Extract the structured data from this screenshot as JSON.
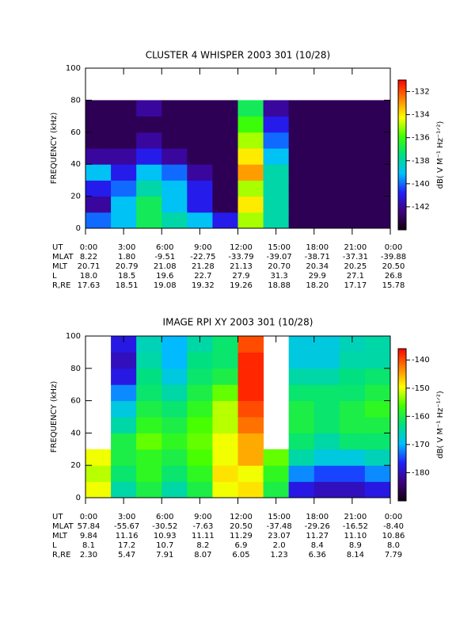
{
  "chart_data": [
    {
      "type": "heatmap",
      "title": "CLUSTER 4 WHISPER 2003 301 (10/28)",
      "ylabel": "FREQUENCY (kHz)",
      "xlim": [
        0,
        24
      ],
      "ylim": [
        0,
        100
      ],
      "yticks": [
        0,
        20,
        40,
        60,
        80,
        100
      ],
      "xticks": [
        {
          "value": 0,
          "label": "0:00"
        },
        {
          "value": 3,
          "label": "3:00"
        },
        {
          "value": 6,
          "label": "6:00"
        },
        {
          "value": 9,
          "label": "9:00"
        },
        {
          "value": 12,
          "label": "12:00"
        },
        {
          "value": 15,
          "label": "15:00"
        },
        {
          "value": 18,
          "label": "18:00"
        },
        {
          "value": 21,
          "label": "21:00"
        },
        {
          "value": 24,
          "label": "0:00"
        }
      ],
      "x_bins": [
        0,
        2,
        4,
        6,
        8,
        10,
        12,
        14,
        16,
        18,
        20,
        22,
        24
      ],
      "y_bins": [
        0,
        10,
        20,
        30,
        40,
        50,
        60,
        70,
        80
      ],
      "z": [
        [
          -140,
          -139,
          -137,
          -138,
          -139,
          -141,
          -135,
          -138,
          -143,
          -143,
          -143,
          -143
        ],
        [
          -142,
          -139,
          -137,
          -139,
          -141,
          -143,
          -134,
          -138,
          -143,
          -143,
          -143,
          -143
        ],
        [
          -141,
          -140,
          -138,
          -139,
          -141,
          -143,
          -135,
          -138,
          -143,
          -143,
          -143,
          -143
        ],
        [
          -139,
          -141,
          -139,
          -140,
          -142,
          -143,
          -133,
          -138,
          -143,
          -143,
          -143,
          -143
        ],
        [
          -142,
          -142,
          -141,
          -142,
          -143,
          -143,
          -134,
          -139,
          -143,
          -143,
          -143,
          -143
        ],
        [
          -143,
          -143,
          -142,
          -143,
          -143,
          -143,
          -135,
          -140,
          -143,
          -143,
          -143,
          -143
        ],
        [
          -143,
          -143,
          -143,
          -143,
          -143,
          -143,
          -136,
          -141,
          -143,
          -143,
          -143,
          -143
        ],
        [
          -143,
          -143,
          -142,
          -143,
          -143,
          -143,
          -137,
          -142,
          -143,
          -143,
          -143,
          -143
        ]
      ],
      "clim": [
        -144,
        -131
      ],
      "cticks": [
        -142,
        -140,
        -138,
        -136,
        -134,
        -132
      ],
      "clabel": "dB( V M⁻¹ Hz⁻¹ᐟ²)",
      "colormap": [
        "#100010",
        "#400080",
        "#2020ff",
        "#00c0ff",
        "#00e080",
        "#40ff00",
        "#ffff00",
        "#ff8000",
        "#ff0000"
      ],
      "row_label": "UT",
      "rows": [
        {
          "name": "MLAT",
          "values": [
            "8.22",
            "1.80",
            "-9.51",
            "-22.75",
            "-33.79",
            "-39.07",
            "-38.71",
            "-37.31",
            "-39.88"
          ]
        },
        {
          "name": "MLT",
          "values": [
            "20.71",
            "20.79",
            "21.08",
            "21.28",
            "21.13",
            "20.70",
            "20.34",
            "20.25",
            "20.50"
          ]
        },
        {
          "name": "L",
          "values": [
            "18.0",
            "18.5",
            "19.6",
            "22.7",
            "27.9",
            "31.3",
            "29.9",
            "27.1",
            "26.8"
          ]
        },
        {
          "name": "R,RE",
          "values": [
            "17.63",
            "18.51",
            "19.08",
            "19.32",
            "19.26",
            "18.88",
            "18.20",
            "17.17",
            "15.78"
          ]
        }
      ]
    },
    {
      "type": "heatmap",
      "title": "IMAGE RPI XY 2003 301 (10/28)",
      "ylabel": "FREQUENCY (kHz)",
      "xlim": [
        0,
        24
      ],
      "ylim": [
        0,
        100
      ],
      "yticks": [
        0,
        20,
        40,
        60,
        80,
        100
      ],
      "xticks": [
        {
          "value": 0,
          "label": "0:00"
        },
        {
          "value": 3,
          "label": "3:00"
        },
        {
          "value": 6,
          "label": "6:00"
        },
        {
          "value": 9,
          "label": "9:00"
        },
        {
          "value": 12,
          "label": "12:00"
        },
        {
          "value": 15,
          "label": "15:00"
        },
        {
          "value": 18,
          "label": "18:00"
        },
        {
          "value": 21,
          "label": "21:00"
        },
        {
          "value": 24,
          "label": "0:00"
        }
      ],
      "x_bins": [
        0,
        2,
        4,
        6,
        8,
        10,
        12,
        14,
        16,
        18,
        20,
        22,
        24
      ],
      "y_bins": [
        0,
        10,
        20,
        30,
        40,
        50,
        60,
        70,
        80,
        90,
        100
      ],
      "z": [
        [
          -150,
          -165,
          -160,
          -165,
          -160,
          -150,
          -148,
          -160,
          -178,
          -180,
          -180,
          -178
        ],
        [
          -152,
          -162,
          -158,
          -162,
          -158,
          -148,
          -150,
          -158,
          -172,
          -175,
          -175,
          -172
        ],
        [
          -150,
          -160,
          -158,
          -160,
          -156,
          -150,
          -145,
          -155,
          -165,
          -168,
          -168,
          -166
        ],
        [
          null,
          -160,
          -155,
          -158,
          -155,
          -150,
          -145,
          null,
          -162,
          -165,
          -162,
          -162
        ],
        [
          null,
          -165,
          -158,
          -160,
          -156,
          -152,
          -142,
          null,
          -160,
          -162,
          -160,
          -160
        ],
        [
          null,
          -168,
          -160,
          -162,
          -158,
          -152,
          -140,
          null,
          -160,
          -162,
          -160,
          -158
        ],
        [
          null,
          -172,
          -162,
          -165,
          -160,
          -155,
          -138,
          null,
          -162,
          -162,
          -162,
          -160
        ],
        [
          null,
          -178,
          -163,
          -168,
          -162,
          -160,
          -138,
          null,
          -165,
          -165,
          -163,
          -162
        ],
        [
          null,
          -180,
          -165,
          -170,
          -163,
          -162,
          -138,
          null,
          -168,
          -168,
          -165,
          -165
        ],
        [
          null,
          -178,
          -166,
          -170,
          -165,
          -162,
          -140,
          null,
          -168,
          -168,
          -166,
          -165
        ]
      ],
      "clim": [
        -190,
        -136
      ],
      "cticks": [
        -180,
        -170,
        -160,
        -150,
        -140
      ],
      "clabel": "dB( V M⁻¹ Hz⁻¹ᐟ²)",
      "colormap": [
        "#100010",
        "#400080",
        "#2020ff",
        "#00c0ff",
        "#00e080",
        "#40ff00",
        "#ffff00",
        "#ff8000",
        "#ff0000"
      ],
      "row_label": "UT",
      "rows": [
        {
          "name": "MLAT",
          "values": [
            "57.84",
            "-55.67",
            "-30.52",
            "-7.63",
            "20.50",
            "-37.48",
            "-29.26",
            "-16.52",
            "-8.40"
          ]
        },
        {
          "name": "MLT",
          "values": [
            "9.84",
            "11.16",
            "10.93",
            "11.11",
            "11.29",
            "23.07",
            "11.27",
            "11.10",
            "10.86"
          ]
        },
        {
          "name": "L",
          "values": [
            "8.1",
            "17.2",
            "10.7",
            "8.2",
            "6.9",
            "2.0",
            "8.4",
            "8.9",
            "8.0"
          ]
        },
        {
          "name": "R,RE",
          "values": [
            "2.30",
            "5.47",
            "7.91",
            "8.07",
            "6.05",
            "1.23",
            "6.36",
            "8.14",
            "7.79"
          ]
        }
      ]
    }
  ]
}
